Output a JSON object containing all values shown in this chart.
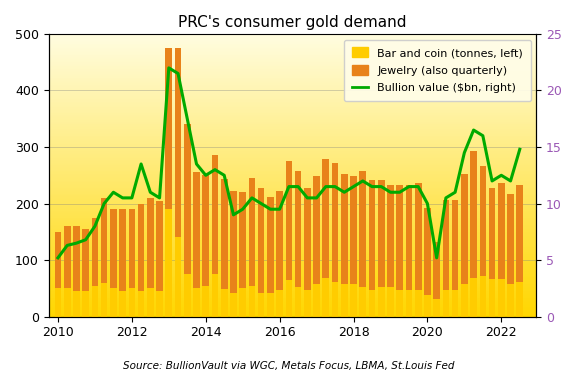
{
  "title": "PRC's consumer gold demand",
  "source": "Source: BullionVault via WGC, Metals Focus, LBMA, St.Louis Fed",
  "bar_color_coin": "#FFCC00",
  "bar_color_jewelry": "#E8821A",
  "line_color": "#00AA00",
  "ylim_left": [
    0,
    500
  ],
  "ylim_right": [
    0,
    25
  ],
  "yticks_left": [
    0,
    100,
    200,
    300,
    400,
    500
  ],
  "yticks_right": [
    0,
    5,
    10,
    15,
    20,
    25
  ],
  "legend_labels": [
    "Bar and coin (tonnes, left)",
    "Jewelry (also quarterly)",
    "Bullion value ($bn, right)"
  ],
  "x_values": [
    2010.0,
    2010.25,
    2010.5,
    2010.75,
    2011.0,
    2011.25,
    2011.5,
    2011.75,
    2012.0,
    2012.25,
    2012.5,
    2012.75,
    2013.0,
    2013.25,
    2013.5,
    2013.75,
    2014.0,
    2014.25,
    2014.5,
    2014.75,
    2015.0,
    2015.25,
    2015.5,
    2015.75,
    2016.0,
    2016.25,
    2016.5,
    2016.75,
    2017.0,
    2017.25,
    2017.5,
    2017.75,
    2018.0,
    2018.25,
    2018.5,
    2018.75,
    2019.0,
    2019.25,
    2019.5,
    2019.75,
    2020.0,
    2020.25,
    2020.5,
    2020.75,
    2021.0,
    2021.25,
    2021.5,
    2021.75,
    2022.0,
    2022.25,
    2022.5
  ],
  "bar_coin": [
    50,
    50,
    45,
    45,
    55,
    60,
    50,
    45,
    50,
    45,
    50,
    45,
    190,
    140,
    75,
    50,
    55,
    75,
    48,
    42,
    50,
    55,
    42,
    42,
    47,
    65,
    52,
    47,
    58,
    68,
    62,
    58,
    58,
    52,
    47,
    52,
    52,
    47,
    47,
    47,
    38,
    32,
    47,
    47,
    58,
    68,
    72,
    67,
    67,
    57,
    62
  ],
  "jewelry": [
    100,
    110,
    115,
    110,
    120,
    150,
    140,
    145,
    140,
    155,
    160,
    160,
    285,
    335,
    265,
    205,
    195,
    210,
    195,
    180,
    170,
    190,
    185,
    170,
    175,
    210,
    205,
    180,
    190,
    210,
    210,
    195,
    190,
    205,
    195,
    190,
    180,
    185,
    185,
    190,
    155,
    100,
    160,
    160,
    195,
    225,
    195,
    160,
    170,
    160,
    170
  ],
  "bullion_value": [
    5.2,
    6.3,
    6.5,
    6.8,
    8.0,
    10.0,
    11.0,
    10.5,
    10.5,
    13.5,
    11.0,
    10.5,
    22.0,
    21.5,
    17.5,
    13.5,
    12.5,
    13.0,
    12.5,
    9.0,
    9.5,
    10.5,
    10.0,
    9.5,
    9.5,
    11.5,
    11.5,
    10.5,
    10.5,
    11.5,
    11.5,
    11.0,
    11.5,
    12.0,
    11.5,
    11.5,
    11.0,
    11.0,
    11.5,
    11.5,
    10.0,
    5.2,
    10.5,
    11.0,
    14.5,
    16.5,
    16.0,
    12.0,
    12.5,
    12.0,
    14.8
  ],
  "xlim": [
    2009.75,
    2022.95
  ],
  "xticks": [
    2010,
    2012,
    2014,
    2016,
    2018,
    2020,
    2022
  ],
  "bar_width": 0.18
}
